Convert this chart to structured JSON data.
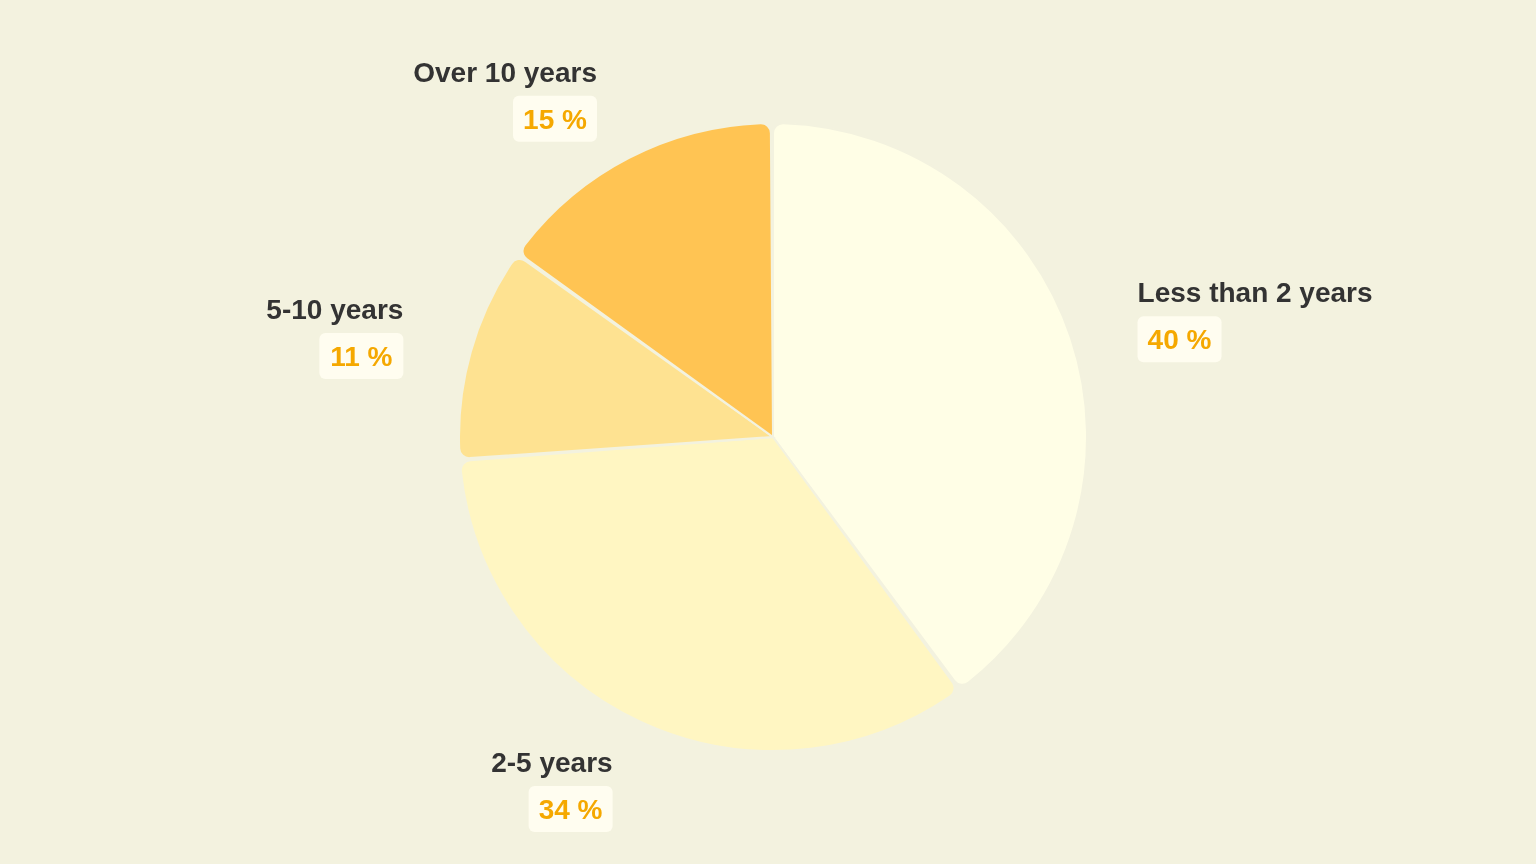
{
  "chart_data": {
    "type": "pie",
    "categories": [
      "Less than 2 years",
      "2-5 years",
      "5-10 years",
      "Over 10 years"
    ],
    "values": [
      40,
      34,
      11,
      15
    ],
    "colors": [
      "#fffee6",
      "#fff6c2",
      "#fee291",
      "#ffc453"
    ],
    "value_labels": [
      "40 %",
      "34 %",
      "11 %",
      "15 %"
    ]
  }
}
